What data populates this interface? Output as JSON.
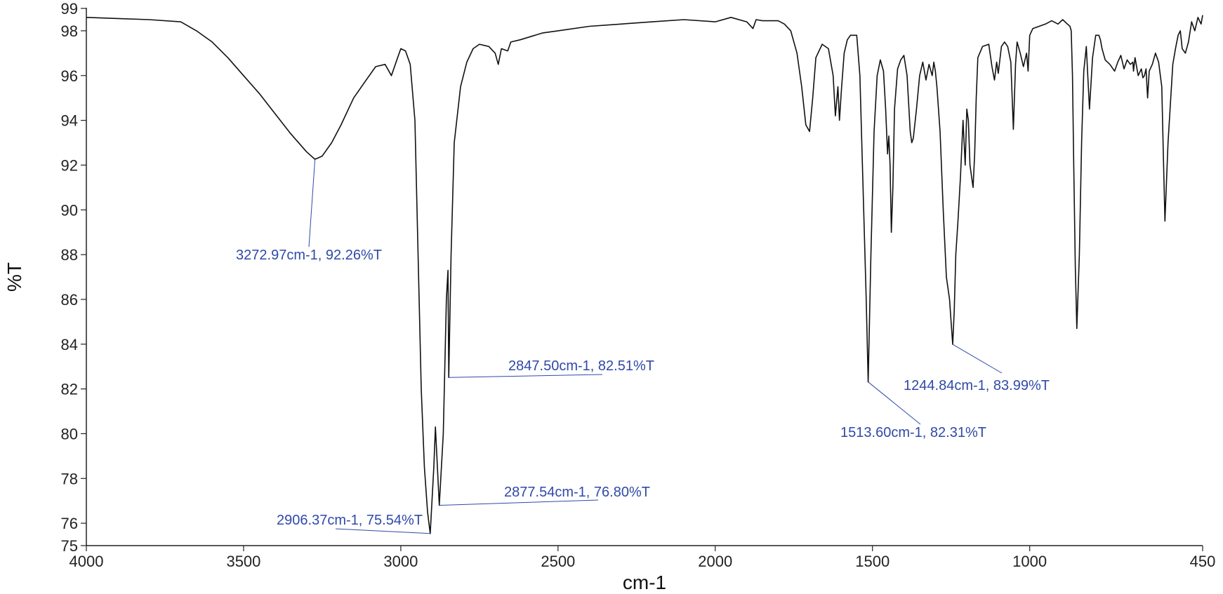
{
  "colors": {
    "spectrum": "#111111",
    "annotation": "#2f49a8",
    "axis": "#222222"
  },
  "chart_data": {
    "type": "line",
    "title": "",
    "xlabel": "cm-1",
    "ylabel": "%T",
    "xlim": [
      4000,
      450
    ],
    "ylim": [
      75,
      99
    ],
    "x_reversed": true,
    "grid": false,
    "legend": "none",
    "x_ticks": [
      4000,
      3500,
      3000,
      2500,
      2000,
      1500,
      1000,
      450
    ],
    "x_tick_labels": [
      "4000",
      "3500",
      "3000",
      "2500",
      "2000",
      "1500",
      "1000",
      "450"
    ],
    "y_ticks": [
      75,
      76,
      78,
      80,
      82,
      84,
      86,
      88,
      90,
      92,
      94,
      96,
      98,
      99
    ],
    "y_tick_labels": [
      "75",
      "76",
      "78",
      "80",
      "82",
      "84",
      "86",
      "88",
      "90",
      "92",
      "94",
      "96",
      "98",
      "99"
    ],
    "series": [
      {
        "x": [
          4000,
          3900,
          3800,
          3700,
          3650,
          3600,
          3550,
          3500,
          3450,
          3400,
          3350,
          3300,
          3272.97,
          3250,
          3220,
          3190,
          3150,
          3110,
          3080,
          3050,
          3030,
          3010,
          3000,
          2985,
          2970,
          2955,
          2945,
          2935,
          2925,
          2915,
          2906.37,
          2895,
          2890,
          2877.54,
          2865,
          2855,
          2850,
          2847.5,
          2840,
          2830,
          2810,
          2790,
          2770,
          2750,
          2720,
          2700,
          2690,
          2680,
          2660,
          2650,
          2620,
          2550,
          2500,
          2400,
          2300,
          2200,
          2100,
          2000,
          1950,
          1900,
          1880,
          1870,
          1850,
          1800,
          1780,
          1760,
          1740,
          1725,
          1712,
          1700,
          1690,
          1680,
          1660,
          1640,
          1625,
          1618,
          1610,
          1605,
          1598,
          1590,
          1580,
          1570,
          1560,
          1550,
          1540,
          1530,
          1520,
          1513.6,
          1505,
          1495,
          1485,
          1475,
          1465,
          1458,
          1452,
          1448,
          1444,
          1440,
          1435,
          1430,
          1420,
          1410,
          1400,
          1390,
          1380,
          1375,
          1370,
          1360,
          1350,
          1340,
          1330,
          1320,
          1310,
          1305,
          1300,
          1295,
          1285,
          1275,
          1265,
          1255,
          1250,
          1244.84,
          1240,
          1235,
          1228,
          1220,
          1212,
          1205,
          1200,
          1195,
          1190,
          1180,
          1175,
          1170,
          1165,
          1150,
          1130,
          1120,
          1112,
          1105,
          1100,
          1090,
          1080,
          1070,
          1060,
          1052,
          1045,
          1040,
          1030,
          1020,
          1010,
          1005,
          1000,
          990,
          970,
          950,
          930,
          910,
          895,
          880,
          872,
          868,
          864,
          860,
          855,
          850,
          842,
          835,
          828,
          820,
          810,
          800,
          790,
          780,
          775,
          770,
          760,
          745,
          730,
          720,
          710,
          700,
          690,
          680,
          672,
          670,
          665,
          655,
          645,
          640,
          635,
          630,
          625,
          620,
          610,
          600,
          590,
          580,
          575,
          570,
          560,
          545,
          535,
          528,
          521,
          515,
          505,
          495,
          485,
          475,
          465,
          455,
          450
        ],
        "y": [
          98.6,
          98.55,
          98.5,
          98.4,
          98.0,
          97.5,
          96.8,
          96.0,
          95.2,
          94.3,
          93.4,
          92.6,
          92.26,
          92.4,
          93.0,
          93.8,
          95.0,
          95.8,
          96.4,
          96.5,
          96.0,
          96.8,
          97.2,
          97.1,
          96.5,
          94.0,
          88.0,
          82.0,
          78.5,
          76.5,
          75.54,
          78.5,
          80.3,
          76.8,
          80.0,
          86.0,
          87.3,
          82.51,
          88.0,
          93.0,
          95.5,
          96.6,
          97.2,
          97.4,
          97.3,
          97.0,
          96.5,
          97.2,
          97.1,
          97.5,
          97.6,
          97.9,
          98.0,
          98.2,
          98.3,
          98.4,
          98.5,
          98.4,
          98.6,
          98.4,
          98.1,
          98.5,
          98.45,
          98.45,
          98.3,
          98.0,
          97.0,
          95.5,
          93.8,
          93.5,
          95.0,
          96.8,
          97.4,
          97.2,
          96.0,
          94.2,
          95.5,
          94.0,
          95.5,
          97.0,
          97.6,
          97.8,
          97.8,
          97.8,
          96.0,
          91.0,
          86.0,
          82.31,
          88.0,
          93.5,
          96.0,
          96.7,
          96.2,
          94.5,
          92.5,
          93.3,
          92.0,
          89.0,
          91.0,
          94.5,
          96.3,
          96.7,
          96.9,
          96.0,
          93.5,
          93.0,
          93.2,
          94.5,
          96.0,
          96.6,
          95.8,
          96.5,
          96.0,
          96.6,
          96.2,
          95.5,
          93.5,
          90.0,
          87.0,
          86.0,
          85.0,
          83.99,
          85.5,
          88.0,
          89.5,
          91.5,
          94.0,
          92.0,
          94.5,
          94.0,
          92.0,
          91.0,
          92.5,
          95.0,
          96.8,
          97.3,
          97.4,
          96.4,
          95.8,
          96.6,
          96.1,
          97.3,
          97.5,
          97.3,
          96.6,
          93.6,
          96.5,
          97.5,
          97.0,
          96.4,
          97.0,
          96.2,
          97.8,
          98.1,
          98.2,
          98.3,
          98.45,
          98.3,
          98.5,
          98.3,
          98.2,
          98.0,
          96.0,
          92.0,
          87.5,
          84.7,
          88.0,
          93.0,
          96.2,
          97.3,
          94.5,
          96.8,
          97.8,
          97.8,
          97.6,
          97.2,
          96.7,
          96.5,
          96.2,
          96.6,
          96.9,
          96.3,
          96.7,
          96.5,
          96.6,
          96.2,
          96.8,
          96.0,
          96.3,
          95.9,
          96.0,
          96.3,
          95.0,
          96.2,
          96.5,
          97.0,
          96.6,
          95.5,
          92.5,
          89.5,
          93.0,
          96.5,
          97.3,
          97.8,
          98.0,
          97.2,
          97.0,
          97.5,
          98.4,
          98.0,
          98.6,
          98.3,
          98.7
        ]
      }
    ],
    "annotations": [
      {
        "text": "3272.97cm-1, 92.26%T",
        "x": 3272.97,
        "y": 92.26
      },
      {
        "text": "2847.50cm-1, 82.51%T",
        "x": 2847.5,
        "y": 82.51
      },
      {
        "text": "2877.54cm-1, 76.80%T",
        "x": 2877.54,
        "y": 76.8
      },
      {
        "text": "2906.37cm-1, 75.54%T",
        "x": 2906.37,
        "y": 75.54
      },
      {
        "text": "1513.60cm-1, 82.31%T",
        "x": 1513.6,
        "y": 82.31
      },
      {
        "text": "1244.84cm-1, 83.99%T",
        "x": 1244.84,
        "y": 83.99
      }
    ]
  }
}
